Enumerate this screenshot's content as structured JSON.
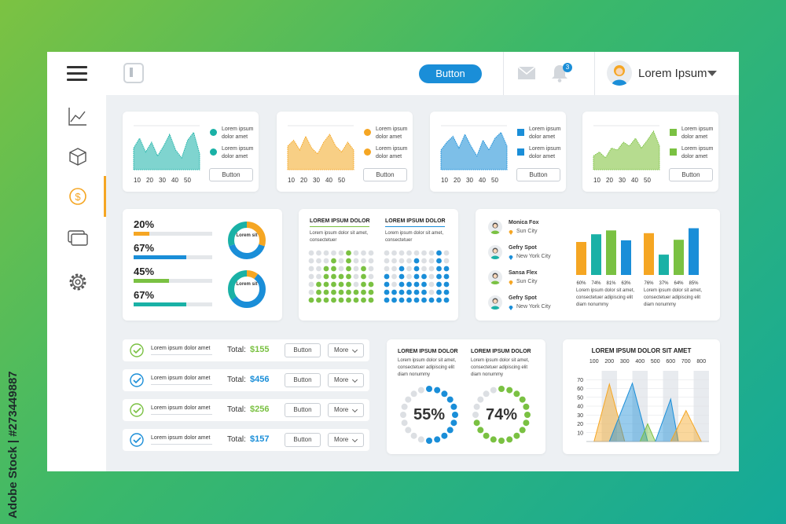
{
  "credit": "Adobe Stock | #273449887",
  "topbar": {
    "button_label": "Button",
    "notification_count": "3",
    "user_name": "Lorem Ipsum"
  },
  "sidebar": {
    "items": [
      "chart-icon",
      "cube-icon",
      "dollar-icon",
      "cards-icon",
      "gear-icon"
    ],
    "active_index": 2
  },
  "colors": {
    "teal": "#1ab1a6",
    "orange": "#f5a623",
    "blue": "#1a8ed8",
    "green": "#7ac142"
  },
  "spark_cards": [
    {
      "color": "#1ab1a6",
      "fill": "#7fd4cf",
      "x_ticks": [
        "10",
        "20",
        "30",
        "40",
        "50"
      ],
      "legend": [
        "Lorem ipsum dolor amet",
        "Lorem ipsum dolor amet"
      ],
      "button": "Button",
      "shape": "circle"
    },
    {
      "color": "#f5a623",
      "fill": "#f8cf85",
      "x_ticks": [
        "10",
        "20",
        "30",
        "40",
        "50"
      ],
      "legend": [
        "Lorem ipsum dolor amet",
        "Lorem ipsum dolor amet"
      ],
      "button": "Button",
      "shape": "circle"
    },
    {
      "color": "#1a8ed8",
      "fill": "#7dbfe8",
      "x_ticks": [
        "10",
        "20",
        "30",
        "40",
        "50"
      ],
      "legend": [
        "Lorem ipsum dolor amet",
        "Lorem ipsum dolor amet"
      ],
      "button": "Button",
      "shape": "square"
    },
    {
      "color": "#7ac142",
      "fill": "#b6dc8f",
      "x_ticks": [
        "10",
        "20",
        "30",
        "40",
        "50"
      ],
      "legend": [
        "Lorem ipsum dolor amet",
        "Lorem ipsum dolor amet"
      ],
      "button": "Button",
      "shape": "square"
    }
  ],
  "progress": [
    {
      "label": "20%",
      "value": 0.2,
      "color": "#f5a623"
    },
    {
      "label": "67%",
      "value": 0.67,
      "color": "#1a8ed8"
    },
    {
      "label": "45%",
      "value": 0.45,
      "color": "#7ac142"
    },
    {
      "label": "67%",
      "value": 0.67,
      "color": "#1ab1a6"
    }
  ],
  "donuts": [
    {
      "label": "Lorem sit",
      "segments": [
        {
          "value": 0.3,
          "color": "#f5a623"
        },
        {
          "value": 0.4,
          "color": "#1a8ed8"
        },
        {
          "value": 0.3,
          "color": "#1ab1a6"
        }
      ]
    },
    {
      "label": "Lorem sit",
      "segments": [
        {
          "value": 0.1,
          "color": "#f5a623"
        },
        {
          "value": 0.55,
          "color": "#1a8ed8"
        },
        {
          "value": 0.35,
          "color": "#1ab1a6"
        }
      ]
    }
  ],
  "dot_grids": [
    {
      "title": "LOREM IPSUM DOLOR",
      "text": "Lorem ipsum dolor sit amet, consectetuer",
      "color": "#7ac142",
      "filled": [
        1,
        3,
        5,
        6,
        4,
        7,
        2,
        5,
        3
      ]
    },
    {
      "title": "LOREM IPSUM DOLOR",
      "text": "Lorem ipsum dolor sit amet, consectetuer",
      "color": "#1a8ed8",
      "filled": [
        4,
        2,
        5,
        3,
        6,
        4,
        1,
        7,
        5
      ]
    }
  ],
  "people": [
    {
      "name": "Monica Fox",
      "city": "Sun City"
    },
    {
      "name": "Gefry Spot",
      "city": "New York City"
    },
    {
      "name": "Sansa Flex",
      "city": "Sun City"
    },
    {
      "name": "Gefry Spot",
      "city": "New York City"
    }
  ],
  "bar_groups": [
    {
      "text": "Lorem ipsum dolor sit amet, consectetuer adipiscing elit diam nonummy",
      "bars": [
        {
          "label": "60%",
          "value": 60,
          "color": "#f5a623"
        },
        {
          "label": "74%",
          "value": 74,
          "color": "#1ab1a6"
        },
        {
          "label": "81%",
          "value": 81,
          "color": "#7ac142"
        },
        {
          "label": "63%",
          "value": 63,
          "color": "#1a8ed8"
        }
      ]
    },
    {
      "text": "Lorem ipsum dolor sit amet, consectetuer adipiscing elit diam nonummy",
      "bars": [
        {
          "label": "76%",
          "value": 76,
          "color": "#f5a623"
        },
        {
          "label": "37%",
          "value": 37,
          "color": "#1ab1a6"
        },
        {
          "label": "64%",
          "value": 64,
          "color": "#7ac142"
        },
        {
          "label": "85%",
          "value": 85,
          "color": "#1a8ed8"
        }
      ]
    }
  ],
  "rows": [
    {
      "text": "Lorem ipsum dolor amet",
      "total_label": "Total:",
      "amount": "$155",
      "amount_color": "#7ac142",
      "check_color": "#7ac142",
      "button": "Button",
      "more": "More"
    },
    {
      "text": "Lorem ipsum dolor amet",
      "total_label": "Total:",
      "amount": "$456",
      "amount_color": "#1a8ed8",
      "check_color": "#1a8ed8",
      "button": "Button",
      "more": "More"
    },
    {
      "text": "Lorem ipsum dolor amet",
      "total_label": "Total:",
      "amount": "$256",
      "amount_color": "#7ac142",
      "check_color": "#7ac142",
      "button": "Button",
      "more": "More"
    },
    {
      "text": "Lorem ipsum dolor amet",
      "total_label": "Total:",
      "amount": "$157",
      "amount_color": "#1a8ed8",
      "check_color": "#1a8ed8",
      "button": "Button",
      "more": "More"
    }
  ],
  "rings": [
    {
      "title": "LOREM IPSUM DOLOR",
      "text": "Lorem ipsum dolor sit amet, consectetuer adipiscing elit diam nonummy",
      "label": "55%",
      "value": 0.55,
      "color": "#1a8ed8"
    },
    {
      "title": "LOREM IPSUM DOLOR",
      "text": "Lorem ipsum dolor sit amet, consectetuer adipiscing elit diam nonummy",
      "label": "74%",
      "value": 0.74,
      "color": "#7ac142"
    }
  ],
  "chart_data": {
    "type": "area",
    "title": "LOREM IPSUM DOLOR SIT AMET",
    "x_ticks": [
      "100",
      "200",
      "300",
      "400",
      "500",
      "600",
      "700",
      "800"
    ],
    "y_ticks": [
      "70",
      "60",
      "50",
      "40",
      "30",
      "20",
      "10"
    ],
    "ylim": [
      0,
      80
    ],
    "series": [
      {
        "color": "#f5a623",
        "x": [
          100,
          200,
          300,
          400
        ],
        "y": [
          0,
          65,
          0,
          0
        ]
      },
      {
        "color": "#1a8ed8",
        "x": [
          200,
          350,
          450
        ],
        "y": [
          0,
          66,
          0
        ]
      },
      {
        "color": "#7ac142",
        "x": [
          400,
          450,
          500
        ],
        "y": [
          0,
          20,
          0
        ]
      },
      {
        "color": "#1a8ed8",
        "x": [
          500,
          600,
          650
        ],
        "y": [
          0,
          48,
          0
        ]
      },
      {
        "color": "#f5a623",
        "x": [
          600,
          700,
          800
        ],
        "y": [
          0,
          35,
          0
        ]
      }
    ]
  }
}
